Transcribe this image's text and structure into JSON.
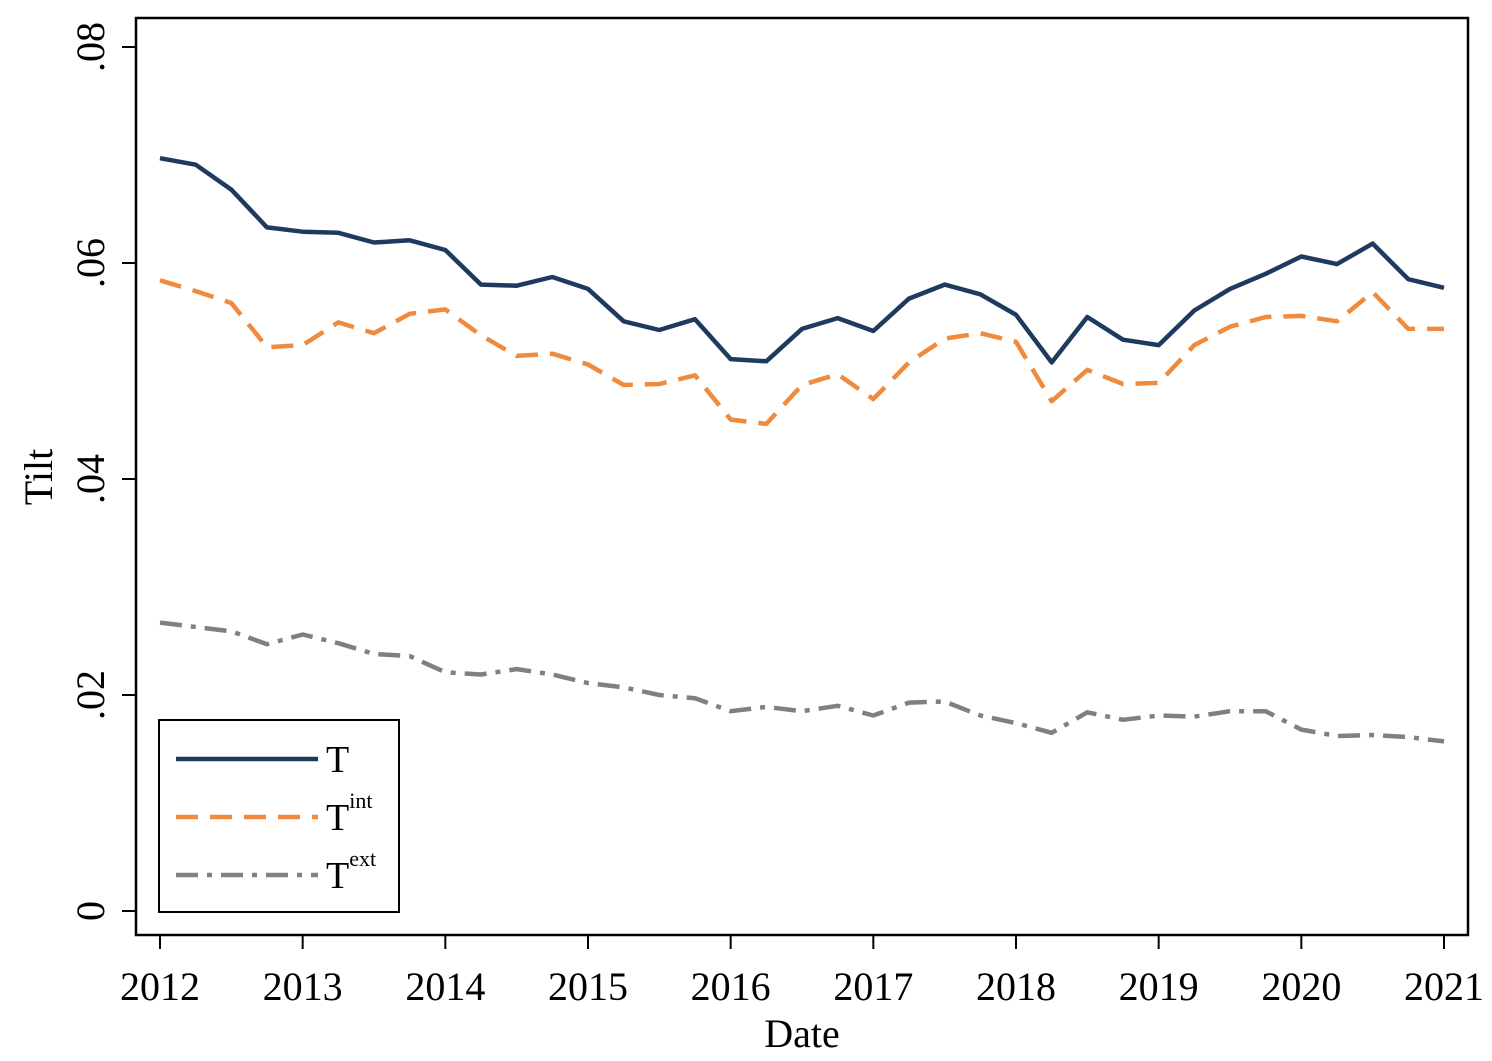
{
  "chart_data": {
    "type": "line",
    "title": "",
    "xlabel": "Date",
    "ylabel": "Tilt",
    "xlim": [
      2012,
      2021
    ],
    "ylim": [
      0,
      0.08
    ],
    "grid": false,
    "legend_position": "bottom-left",
    "x_ticks": [
      2012,
      2013,
      2014,
      2015,
      2016,
      2017,
      2018,
      2019,
      2020,
      2021
    ],
    "x_tick_labels": [
      "2012",
      "2013",
      "2014",
      "2015",
      "2016",
      "2017",
      "2018",
      "2019",
      "2020",
      "2021"
    ],
    "y_ticks": [
      0,
      0.02,
      0.04,
      0.06,
      0.08
    ],
    "y_tick_labels": [
      "0",
      ".02",
      ".04",
      ".06",
      ".08"
    ],
    "x": [
      2012.0,
      2012.25,
      2012.5,
      2012.75,
      2013.0,
      2013.25,
      2013.5,
      2013.75,
      2014.0,
      2014.25,
      2014.5,
      2014.75,
      2015.0,
      2015.25,
      2015.5,
      2015.75,
      2016.0,
      2016.25,
      2016.5,
      2016.75,
      2017.0,
      2017.25,
      2017.5,
      2017.75,
      2018.0,
      2018.25,
      2018.5,
      2018.75,
      2019.0,
      2019.25,
      2019.5,
      2019.75,
      2020.0,
      2020.25,
      2020.5,
      2020.75,
      2021.0
    ],
    "series": [
      {
        "name": "T",
        "legend_base": "T",
        "legend_sup": "",
        "color": "#1f3a5f",
        "style": "solid",
        "values": [
          0.0697,
          0.0691,
          0.0668,
          0.0633,
          0.0629,
          0.0628,
          0.0619,
          0.0621,
          0.0612,
          0.058,
          0.0579,
          0.0587,
          0.0576,
          0.0546,
          0.0538,
          0.0548,
          0.0511,
          0.0509,
          0.0539,
          0.0549,
          0.0537,
          0.0567,
          0.058,
          0.0571,
          0.0552,
          0.0508,
          0.055,
          0.0529,
          0.0524,
          0.0556,
          0.0576,
          0.059,
          0.0606,
          0.0599,
          0.0618,
          0.0585,
          0.0577
        ]
      },
      {
        "name": "T^int",
        "legend_base": "T",
        "legend_sup": "int",
        "color": "#f08a3c",
        "style": "dashed",
        "values": [
          0.0584,
          0.0574,
          0.0563,
          0.0522,
          0.0524,
          0.0545,
          0.0535,
          0.0553,
          0.0557,
          0.0533,
          0.0514,
          0.0516,
          0.0506,
          0.0487,
          0.0488,
          0.0496,
          0.0455,
          0.0451,
          0.0487,
          0.0497,
          0.0474,
          0.0508,
          0.053,
          0.0535,
          0.0527,
          0.0472,
          0.0501,
          0.0488,
          0.0489,
          0.0524,
          0.0541,
          0.055,
          0.0551,
          0.0546,
          0.0573,
          0.0539,
          0.0539
        ]
      },
      {
        "name": "T^ext",
        "legend_base": "T",
        "legend_sup": "ext",
        "color": "#808080",
        "style": "dashdot",
        "values": [
          0.0267,
          0.0263,
          0.0259,
          0.0247,
          0.0256,
          0.0248,
          0.0238,
          0.0236,
          0.0221,
          0.0219,
          0.0224,
          0.0219,
          0.0211,
          0.0207,
          0.02,
          0.0197,
          0.0185,
          0.0189,
          0.0185,
          0.019,
          0.0181,
          0.0193,
          0.0194,
          0.0181,
          0.0174,
          0.0165,
          0.0184,
          0.0177,
          0.0181,
          0.018,
          0.0185,
          0.0185,
          0.0168,
          0.0162,
          0.0163,
          0.0161,
          0.0157
        ]
      }
    ]
  }
}
